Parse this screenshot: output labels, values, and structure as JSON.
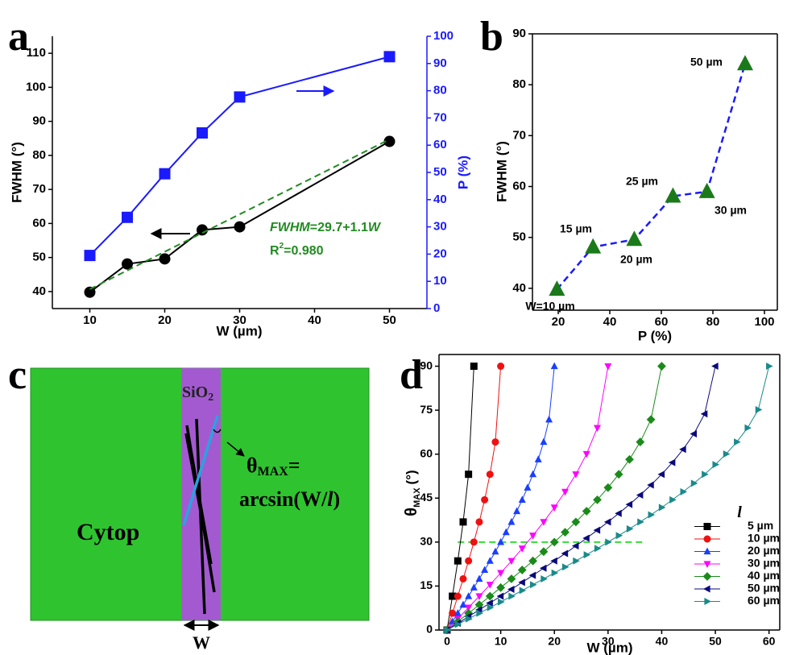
{
  "chart_data": [
    {
      "type": "line",
      "panel": "a",
      "xlabel": "W (µm)",
      "ylabel": "FWHM (°)",
      "y2label": "P (%)",
      "x": [
        10,
        15,
        20,
        25,
        30,
        50
      ],
      "xlim": [
        5,
        55
      ],
      "xticks": [
        10,
        20,
        30,
        40,
        50
      ],
      "ylim": [
        35,
        115
      ],
      "yticks": [
        40,
        50,
        60,
        70,
        80,
        90,
        100,
        110
      ],
      "y2lim": [
        0,
        100
      ],
      "y2ticks": [
        0,
        10,
        20,
        30,
        40,
        50,
        60,
        70,
        80,
        90,
        100
      ],
      "y2color": "#1a1aff",
      "series": [
        {
          "color": "#000000",
          "marker": "circle",
          "values": [
            39.8,
            48.1,
            49.6,
            58.1,
            59,
            84.1
          ]
        },
        {
          "color": "#1a1aff",
          "marker": "square",
          "axis": "y2",
          "values": [
            19.5,
            33.5,
            49.5,
            64.5,
            77.7,
            92.5
          ]
        },
        {
          "color": "#228b22",
          "line_style": "dashed",
          "values": [
            40.7,
            46.2,
            51.7,
            57.2,
            62.7,
            84.7
          ]
        }
      ],
      "fit_label": [
        "FWHM",
        "=29.7+1.1",
        "W"
      ],
      "fit_r2": [
        "R",
        "2",
        "=0.980"
      ],
      "fit_color": "#228b22"
    },
    {
      "type": "scatter",
      "panel": "b",
      "xlabel": "P (%)",
      "ylabel": "FWHM (°)",
      "x": [
        19.5,
        33.5,
        49.5,
        64.5,
        77.7,
        92.5
      ],
      "xlim": [
        10,
        105
      ],
      "xticks": [
        20,
        40,
        60,
        80,
        100
      ],
      "ylim": [
        35.7,
        90
      ],
      "yticks": [
        40,
        50,
        60,
        70,
        80,
        90
      ],
      "point_labels": [
        "W=10 µm",
        "15 µm",
        "20 µm",
        "25 µm",
        "30 µm",
        "50 µm"
      ],
      "series": [
        {
          "color": "#1a7a1a",
          "marker": "triangle-up",
          "line_color": "#1a1aff",
          "line_style": "dashed",
          "values": [
            39.8,
            48.1,
            49.6,
            58.1,
            59,
            84.1
          ]
        }
      ]
    },
    {
      "type": "line",
      "panel": "d",
      "xlabel": "W (µm)",
      "ylabel": "θ",
      "ylabel_sub": "MAX",
      "ylabel_unit": "(°)",
      "legend_title": "l",
      "legend": "lower right",
      "xlim": [
        -1.5,
        62
      ],
      "xticks": [
        0,
        10,
        20,
        30,
        40,
        50,
        60
      ],
      "ylim": [
        0,
        94
      ],
      "yticks": [
        0,
        15,
        30,
        45,
        60,
        75,
        90
      ],
      "reference_line": {
        "y": 30,
        "x": [
          2,
          37
        ],
        "color": "#33dd33"
      },
      "series": [
        {
          "name": "5 µm",
          "color": "#000000",
          "marker": "square",
          "x": [
            0,
            1,
            2,
            3,
            4,
            5
          ],
          "values": [
            0,
            11.54,
            23.58,
            36.87,
            53.13,
            90
          ]
        },
        {
          "name": "10 µm",
          "color": "#ee1111",
          "marker": "circle",
          "x": [
            0,
            1,
            2,
            3,
            4,
            5,
            6,
            7,
            8,
            9,
            10
          ],
          "values": [
            0,
            5.74,
            11.54,
            17.46,
            23.58,
            30,
            36.87,
            44.43,
            53.13,
            64.16,
            90
          ]
        },
        {
          "name": "20 µm",
          "color": "#1a3fff",
          "marker": "triangle-up",
          "x": [
            0,
            1,
            2,
            3,
            4,
            5,
            6,
            7,
            8,
            9,
            10,
            11,
            12,
            13,
            14,
            15,
            16,
            17,
            18,
            19,
            20
          ],
          "values": [
            0,
            2.87,
            5.74,
            8.63,
            11.54,
            14.48,
            17.46,
            20.49,
            23.58,
            26.74,
            30,
            33.37,
            36.87,
            40.54,
            44.43,
            48.59,
            53.13,
            58.21,
            64.16,
            71.81,
            90
          ]
        },
        {
          "name": "30 µm",
          "color": "#ff00ff",
          "marker": "triangle-down",
          "x": [
            0,
            2,
            4,
            6,
            8,
            10,
            12,
            14,
            16,
            18,
            20,
            22,
            24,
            26,
            28,
            30
          ],
          "values": [
            0,
            3.82,
            7.66,
            11.54,
            15.47,
            19.47,
            23.58,
            27.82,
            32.23,
            36.87,
            41.81,
            47.17,
            53.13,
            60.07,
            68.96,
            90
          ]
        },
        {
          "name": "40 µm",
          "color": "#1a8a1a",
          "marker": "diamond",
          "x": [
            0,
            2,
            4,
            6,
            8,
            10,
            12,
            14,
            16,
            18,
            20,
            22,
            24,
            26,
            28,
            30,
            32,
            34,
            36,
            38,
            40
          ],
          "values": [
            0,
            2.87,
            5.74,
            8.63,
            11.54,
            14.48,
            17.46,
            20.49,
            23.58,
            26.74,
            30,
            33.37,
            36.87,
            40.54,
            44.43,
            48.59,
            53.13,
            58.21,
            64.16,
            71.81,
            90
          ]
        },
        {
          "name": "50 µm",
          "color": "#0a0a7a",
          "marker": "triangle-left",
          "x": [
            0,
            2,
            4,
            6,
            8,
            10,
            12,
            14,
            16,
            18,
            20,
            22,
            24,
            26,
            28,
            30,
            32,
            34,
            36,
            38,
            40,
            42,
            44,
            46,
            48,
            50
          ],
          "values": [
            0,
            2.29,
            4.59,
            6.89,
            9.21,
            11.54,
            13.89,
            16.26,
            18.66,
            21.1,
            23.58,
            26.1,
            28.69,
            31.33,
            34.06,
            36.87,
            39.79,
            42.84,
            46.05,
            49.46,
            53.13,
            57.14,
            61.64,
            66.93,
            73.74,
            90
          ]
        },
        {
          "name": "60 µm",
          "color": "#1a8a8a",
          "marker": "triangle-right",
          "x": [
            0,
            2,
            4,
            6,
            8,
            10,
            12,
            14,
            16,
            18,
            20,
            22,
            24,
            26,
            28,
            30,
            32,
            34,
            36,
            38,
            40,
            42,
            44,
            46,
            48,
            50,
            52,
            54,
            56,
            58,
            60
          ],
          "values": [
            0,
            1.91,
            3.82,
            5.74,
            7.66,
            9.59,
            11.54,
            13.49,
            15.47,
            17.46,
            19.47,
            21.51,
            23.58,
            25.68,
            27.82,
            30,
            32.23,
            34.52,
            36.87,
            39.29,
            41.81,
            44.43,
            47.17,
            50.06,
            53.13,
            56.44,
            60.07,
            64.16,
            68.96,
            75.16,
            90
          ]
        }
      ]
    }
  ],
  "diagram": {
    "panel": "c",
    "strip_label": "SiO",
    "strip_label_sub": "2",
    "formula_symbol": "θ",
    "formula_symbol_sub": "MAX",
    "formula_eq": "=",
    "formula_rhs_start": "arcsin(W/",
    "formula_rhs_var": "l",
    "formula_rhs_end": ")",
    "region_label": "Cytop",
    "width_label": "W"
  }
}
